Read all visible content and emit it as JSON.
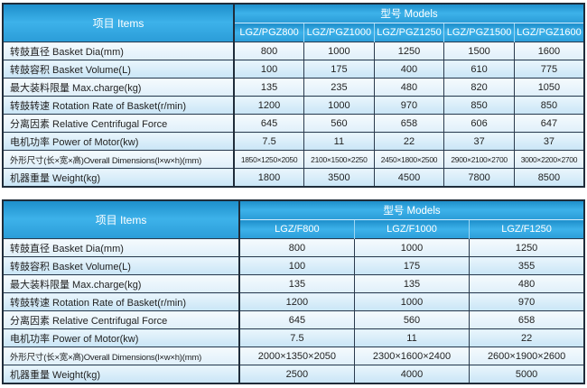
{
  "colors": {
    "header_blue_top": "#1e8fcb",
    "header_blue_mid": "#3db2ea",
    "header_blue_bottom": "#2b9dd8",
    "row_light": "#e4f2fb",
    "row_dark": "#cde8f7",
    "grid_line": "#1f2c3a",
    "header_text": "#ffffff",
    "body_text": "#222222"
  },
  "tables": [
    {
      "name": "lgz-pgz-series-spec-table",
      "items_header": "项目 Items",
      "models_header": "型号 Models",
      "models": [
        "LGZ/PGZ800",
        "LGZ/PGZ1000",
        "LGZ/PGZ1250",
        "LGZ/PGZ1500",
        "LGZ/PGZ1600"
      ],
      "rows": [
        {
          "label": "转鼓直径 Basket Dia(mm)",
          "values": [
            "800",
            "1000",
            "1250",
            "1500",
            "1600"
          ]
        },
        {
          "label": "转鼓容积 Basket Volume(L)",
          "values": [
            "100",
            "175",
            "400",
            "610",
            "775"
          ]
        },
        {
          "label": "最大装料限量 Max.charge(kg)",
          "values": [
            "135",
            "235",
            "480",
            "820",
            "1050"
          ]
        },
        {
          "label": "转鼓转速 Rotation Rate of Basket(r/min)",
          "values": [
            "1200",
            "1000",
            "970",
            "850",
            "850"
          ]
        },
        {
          "label": "分离因素 Relative Centrifugal Force",
          "values": [
            "645",
            "560",
            "658",
            "606",
            "647"
          ]
        },
        {
          "label": "电机功率 Power of Motor(kw)",
          "values": [
            "7.5",
            "11",
            "22",
            "37",
            "37"
          ]
        },
        {
          "label": "外形尺寸(长×宽×高)Overall Dimensions(l×w×h)(mm)",
          "values": [
            "1850×1250×2050",
            "2100×1500×2250",
            "2450×1800×2500",
            "2900×2100×2700",
            "3000×2200×2700"
          ],
          "small_label": true,
          "small_values": true
        },
        {
          "label": "机器重量 Weight(kg)",
          "values": [
            "1800",
            "3500",
            "4500",
            "7800",
            "8500"
          ]
        }
      ]
    },
    {
      "name": "lgz-f-series-spec-table",
      "items_header": "项目 Items",
      "models_header": "型号 Models",
      "models": [
        "LGZ/F800",
        "LGZ/F1000",
        "LGZ/F1250"
      ],
      "rows": [
        {
          "label": "转鼓直径 Basket Dia(mm)",
          "values": [
            "800",
            "1000",
            "1250"
          ]
        },
        {
          "label": "转鼓容积 Basket Volume(L)",
          "values": [
            "100",
            "175",
            "355"
          ]
        },
        {
          "label": "最大装料限量 Max.charge(kg)",
          "values": [
            "135",
            "135",
            "480"
          ]
        },
        {
          "label": "转鼓转速 Rotation Rate of Basket(r/min)",
          "values": [
            "1200",
            "1000",
            "970"
          ]
        },
        {
          "label": "分离因素 Relative Centrifugal Force",
          "values": [
            "645",
            "560",
            "658"
          ]
        },
        {
          "label": "电机功率 Power of Motor(kw)",
          "values": [
            "7.5",
            "11",
            "22"
          ]
        },
        {
          "label": "外形尺寸(长×宽×高)Overall Dimensions(l×w×h)(mm)",
          "values": [
            "2000×1350×2050",
            "2300×1600×2400",
            "2600×1900×2600"
          ],
          "small_label": true
        },
        {
          "label": "机器重量 Weight(kg)",
          "values": [
            "2500",
            "4000",
            "5000"
          ]
        }
      ]
    }
  ]
}
